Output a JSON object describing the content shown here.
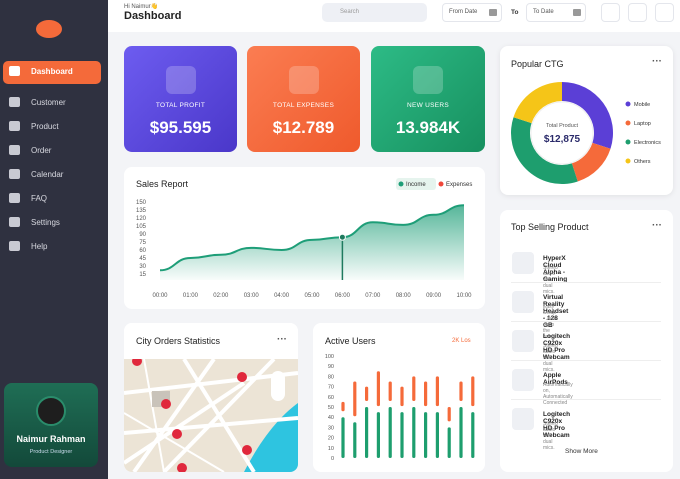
{
  "sidebar": {
    "menu": [
      "Dashboard",
      "Customer",
      "Product",
      "Order",
      "Calendar",
      "FAQ",
      "Settings",
      "Help"
    ],
    "profile": {
      "name": "Naimur Rahman",
      "role": "Product Designer"
    }
  },
  "header": {
    "greeting": "Hi Naimur👋",
    "title": "Dashboard",
    "search": "Search",
    "from_date": "From Date",
    "to": "To",
    "to_date": "To Date"
  },
  "stats": [
    {
      "label": "TOTAL PROFIT",
      "value": "$95.595"
    },
    {
      "label": "TOTAL EXPENSES",
      "value": "$12.789"
    },
    {
      "label": "NEW USERS",
      "value": "13.984K"
    }
  ],
  "sales_report": {
    "type": "line",
    "title": "Sales Report",
    "categories": [
      "00:00",
      "01:00",
      "02:00",
      "03:00",
      "04:00",
      "05:00",
      "06:00",
      "07:00",
      "08:00",
      "09:00",
      "10:00"
    ],
    "series": [
      {
        "name": "Income",
        "color": "#1e9e78",
        "values": [
          22,
          45,
          51,
          64,
          60,
          79,
          84,
          112,
          107,
          126,
          144
        ]
      }
    ],
    "legend": [
      {
        "name": "Income",
        "color": "#1e9e78"
      },
      {
        "name": "Expenses",
        "color": "#f0473a"
      }
    ],
    "ylim": [
      15,
      150
    ],
    "yticks": [
      15,
      30,
      45,
      60,
      75,
      90,
      105,
      120,
      135,
      150
    ]
  },
  "popular_ctg": {
    "type": "pie",
    "title": "Popular CTG",
    "center_label": "Total Product",
    "center_value": "$12,875",
    "categories": [
      "Mobile",
      "Laptop",
      "Electronics",
      "Others"
    ],
    "values": [
      30,
      15,
      35,
      20
    ],
    "colors": [
      "#5b3fd6",
      "#f56a3a",
      "#1e9e6e",
      "#f5c518"
    ]
  },
  "top_selling": {
    "title": "Top Selling Product",
    "items": [
      {
        "name": "HyperX Cloud Alpha - Gaming",
        "desc": "Stereo audio with dual mics."
      },
      {
        "name": "Virtual Reality Headset - 128 GB",
        "desc": "Easy Setup - Just open the box"
      },
      {
        "name": "Logitech C920x HD Pro Webcam",
        "desc": "Stereo audio with dual mics."
      },
      {
        "name": "Apple AirPods",
        "desc": "Automatically on, Automatically Connected"
      },
      {
        "name": "Logitech C920x HD Pro Webcam",
        "desc": "Stereo audio with dual mics."
      }
    ],
    "more": "Show More"
  },
  "city_orders": {
    "title": "City Orders Statistics"
  },
  "active_users": {
    "type": "bar",
    "title": "Active Users",
    "badge": "2K Los",
    "ylim": [
      0,
      100
    ],
    "yticks": [
      0,
      10,
      20,
      30,
      40,
      50,
      60,
      70,
      80,
      90,
      100
    ],
    "series": [
      {
        "color": "#1e9e6e",
        "values": [
          40,
          35,
          50,
          45,
          50,
          45,
          50,
          45,
          45,
          30,
          50,
          45
        ]
      },
      {
        "color": "#f56a3a",
        "values": [
          15,
          40,
          20,
          40,
          25,
          25,
          30,
          30,
          35,
          20,
          25,
          35
        ]
      }
    ]
  }
}
